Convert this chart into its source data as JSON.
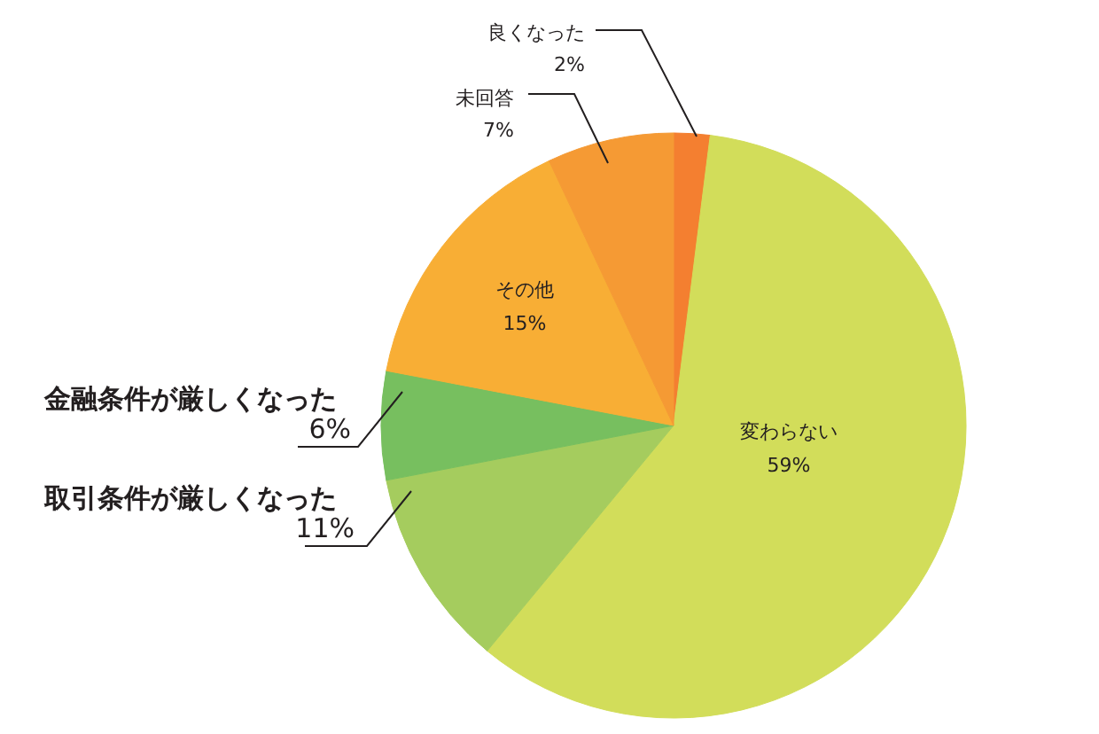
{
  "chart_data": {
    "type": "pie",
    "categories": [
      "良くなった",
      "変わらない",
      "取引条件が厳しくなった",
      "金融条件が厳しくなった",
      "その他",
      "未回答"
    ],
    "values": [
      2,
      59,
      11,
      6,
      15,
      7
    ],
    "colors": [
      "#f47f30",
      "#d2dd5a",
      "#a5cc5e",
      "#77bf5f",
      "#f8ae35",
      "#f59a34"
    ],
    "value_labels": [
      "2%",
      "59%",
      "11%",
      "6%",
      "15%",
      "7%"
    ]
  }
}
